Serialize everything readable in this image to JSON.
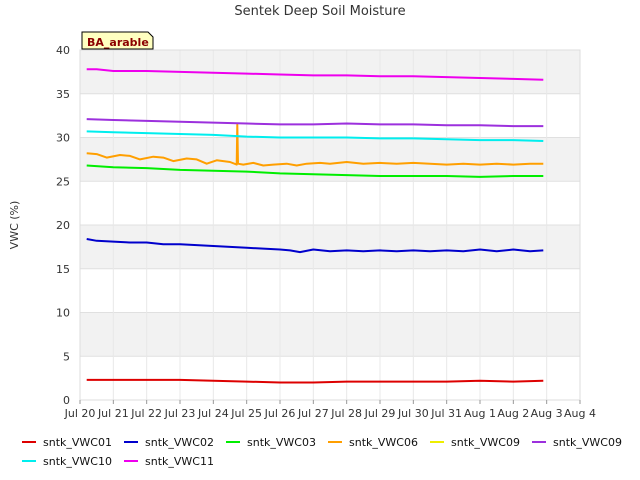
{
  "chart_data": {
    "type": "line",
    "title": "Sentek Deep Soil Moisture",
    "ylabel": "VWC (%)",
    "xlabel": "",
    "site_tag": "BA_arable",
    "ylim": [
      0,
      40
    ],
    "yticks": [
      0,
      5,
      10,
      15,
      20,
      25,
      30,
      35,
      40
    ],
    "xlim": [
      0,
      15
    ],
    "xticks": [
      {
        "v": 0,
        "label": "Jul 20"
      },
      {
        "v": 1,
        "label": "Jul 21"
      },
      {
        "v": 2,
        "label": "Jul 22"
      },
      {
        "v": 3,
        "label": "Jul 23"
      },
      {
        "v": 4,
        "label": "Jul 24"
      },
      {
        "v": 5,
        "label": "Jul 25"
      },
      {
        "v": 6,
        "label": "Jul 26"
      },
      {
        "v": 7,
        "label": "Jul 27"
      },
      {
        "v": 8,
        "label": "Jul 28"
      },
      {
        "v": 9,
        "label": "Jul 29"
      },
      {
        "v": 10,
        "label": "Jul 30"
      },
      {
        "v": 11,
        "label": "Jul 31"
      },
      {
        "v": 12,
        "label": "Aug 1"
      },
      {
        "v": 13,
        "label": "Aug 2"
      },
      {
        "v": 14,
        "label": "Aug 3"
      },
      {
        "v": 15,
        "label": "Aug 4"
      }
    ],
    "grid": true,
    "legend_position": "bottom",
    "series": [
      {
        "name": "sntk_VWC01",
        "color": "#dd0000",
        "x": [
          0.2,
          1,
          2,
          3,
          4,
          5,
          6,
          7,
          8,
          9,
          10,
          11,
          12,
          13,
          13.9
        ],
        "y": [
          2.3,
          2.3,
          2.3,
          2.3,
          2.2,
          2.1,
          2.0,
          2.0,
          2.1,
          2.1,
          2.1,
          2.1,
          2.2,
          2.1,
          2.2
        ]
      },
      {
        "name": "sntk_VWC02",
        "color": "#0000cc",
        "x": [
          0.2,
          0.5,
          1,
          1.5,
          2,
          2.5,
          3,
          3.5,
          4,
          4.5,
          5,
          5.5,
          6,
          6.3,
          6.6,
          7,
          7.5,
          8,
          8.5,
          9,
          9.5,
          10,
          10.5,
          11,
          11.5,
          12,
          12.5,
          13,
          13.5,
          13.9
        ],
        "y": [
          18.4,
          18.2,
          18.1,
          18.0,
          18.0,
          17.8,
          17.8,
          17.7,
          17.6,
          17.5,
          17.4,
          17.3,
          17.2,
          17.1,
          16.9,
          17.2,
          17.0,
          17.1,
          17.0,
          17.1,
          17.0,
          17.1,
          17.0,
          17.1,
          17.0,
          17.2,
          17.0,
          17.2,
          17.0,
          17.1
        ]
      },
      {
        "name": "sntk_VWC03",
        "color": "#00ee00",
        "x": [
          0.2,
          1,
          2,
          3,
          4,
          5,
          6,
          7,
          8,
          9,
          10,
          11,
          12,
          13,
          13.9
        ],
        "y": [
          26.8,
          26.6,
          26.5,
          26.3,
          26.2,
          26.1,
          25.9,
          25.8,
          25.7,
          25.6,
          25.6,
          25.6,
          25.5,
          25.6,
          25.6
        ]
      },
      {
        "name": "sntk_VWC06",
        "color": "#ff9f00",
        "x": [
          0.2,
          0.5,
          0.8,
          1.2,
          1.5,
          1.8,
          2.2,
          2.5,
          2.8,
          3.2,
          3.5,
          3.8,
          4.1,
          4.5,
          4.7,
          4.72,
          4.74,
          4.9,
          5.2,
          5.5,
          5.8,
          6.2,
          6.5,
          6.8,
          7.2,
          7.5,
          8,
          8.5,
          9,
          9.5,
          10,
          10.5,
          11,
          11.5,
          12,
          12.5,
          13,
          13.5,
          13.9
        ],
        "y": [
          28.2,
          28.1,
          27.7,
          28.0,
          27.9,
          27.5,
          27.8,
          27.7,
          27.3,
          27.6,
          27.5,
          27.0,
          27.4,
          27.2,
          26.9,
          31.5,
          27.0,
          26.9,
          27.1,
          26.8,
          26.9,
          27.0,
          26.8,
          27.0,
          27.1,
          27.0,
          27.2,
          27.0,
          27.1,
          27.0,
          27.1,
          27.0,
          26.9,
          27.0,
          26.9,
          27.0,
          26.9,
          27.0,
          27.0
        ]
      },
      {
        "name": "sntk_VWC09",
        "color": "#eeee00",
        "x": [],
        "y": []
      },
      {
        "name": "sntk_VWC09",
        "color": "#9c30dd",
        "x": [
          0.2,
          1,
          2,
          3,
          4,
          5,
          6,
          7,
          8,
          9,
          10,
          11,
          12,
          13,
          13.9
        ],
        "y": [
          32.1,
          32.0,
          31.9,
          31.8,
          31.7,
          31.6,
          31.5,
          31.5,
          31.6,
          31.5,
          31.5,
          31.4,
          31.4,
          31.3,
          31.3
        ]
      },
      {
        "name": "sntk_VWC10",
        "color": "#00eeee",
        "x": [
          0.2,
          1,
          2,
          3,
          4,
          5,
          6,
          7,
          8,
          9,
          10,
          11,
          12,
          13,
          13.9
        ],
        "y": [
          30.7,
          30.6,
          30.5,
          30.4,
          30.3,
          30.1,
          30.0,
          30.0,
          30.0,
          29.9,
          29.9,
          29.8,
          29.7,
          29.7,
          29.6
        ]
      },
      {
        "name": "sntk_VWC11",
        "color": "#ee00ee",
        "x": [
          0.2,
          0.5,
          1,
          2,
          3,
          4,
          5,
          6,
          7,
          8,
          9,
          10,
          11,
          12,
          13,
          13.9
        ],
        "y": [
          37.8,
          37.8,
          37.6,
          37.6,
          37.5,
          37.4,
          37.3,
          37.2,
          37.1,
          37.1,
          37.0,
          37.0,
          36.9,
          36.8,
          36.7,
          36.6
        ]
      }
    ]
  }
}
